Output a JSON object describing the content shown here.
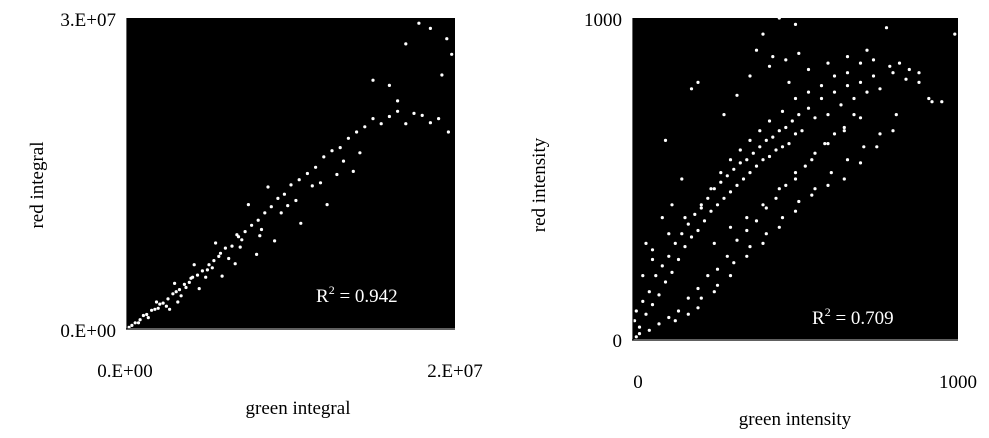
{
  "colors": {
    "plot_background": "#000000",
    "point": "#ffffff",
    "axis": "#000000",
    "text": "#000000"
  },
  "chart_data": [
    {
      "type": "scatter",
      "xlabel": "green integral",
      "ylabel": "red integral",
      "xlim": [
        0,
        20000000
      ],
      "ylim": [
        0,
        30000000
      ],
      "x_tick_labels": [
        "0.E+00",
        "2.E+07"
      ],
      "y_tick_labels": [
        "0.E+00",
        "3.E+07"
      ],
      "annotation": {
        "text": "R",
        "superscript": "2",
        "suffix": " = 0.942"
      },
      "grid": false,
      "points": [
        [
          120000.0,
          150000.0
        ],
        [
          300000.0,
          350000.0
        ],
        [
          500000.0,
          600000.0
        ],
        [
          800000.0,
          900000.0
        ],
        [
          1000000.0,
          1300000.0
        ],
        [
          1200000.0,
          1400000.0
        ],
        [
          1500000.0,
          1800000.0
        ],
        [
          1700000.0,
          1900000.0
        ],
        [
          2000000.0,
          2400000.0
        ],
        [
          2200000.0,
          2500000.0
        ],
        [
          2500000.0,
          2900000.0
        ],
        [
          2800000.0,
          3400000.0
        ],
        [
          3000000.0,
          3600000.0
        ],
        [
          3200000.0,
          3800000.0
        ],
        [
          3500000.0,
          4300000.0
        ],
        [
          3800000.0,
          4500000.0
        ],
        [
          4000000.0,
          5000000.0
        ],
        [
          4300000.0,
          5200000.0
        ],
        [
          4600000.0,
          5600000.0
        ],
        [
          5000000.0,
          6200000.0
        ],
        [
          5300000.0,
          6600000.0
        ],
        [
          5600000.0,
          7000000.0
        ],
        [
          6000000.0,
          7800000.0
        ],
        [
          6400000.0,
          8000000.0
        ],
        [
          6800000.0,
          8900000.0
        ],
        [
          7200000.0,
          9400000.0
        ],
        [
          7600000.0,
          10000000.0
        ],
        [
          8000000.0,
          10500000.0
        ],
        [
          8400000.0,
          11200000.0
        ],
        [
          8800000.0,
          11800000.0
        ],
        [
          9200000.0,
          12600000.0
        ],
        [
          9600000.0,
          13000000.0
        ],
        [
          10000000.0,
          13900000.0
        ],
        [
          10500000.0,
          14400000.0
        ],
        [
          11000000.0,
          15000000.0
        ],
        [
          11500000.0,
          15600000.0
        ],
        [
          12000000.0,
          16600000.0
        ],
        [
          12500000.0,
          17200000.0
        ],
        [
          13000000.0,
          17500000.0
        ],
        [
          13500000.0,
          18400000.0
        ],
        [
          14000000.0,
          19000000.0
        ],
        [
          14500000.0,
          19500000.0
        ],
        [
          15000000.0,
          20300000.0
        ],
        [
          15500000.0,
          19800000.0
        ],
        [
          16000000.0,
          20500000.0
        ],
        [
          16500000.0,
          21000000.0
        ],
        [
          17000000.0,
          19800000.0
        ],
        [
          17500000.0,
          20800000.0
        ],
        [
          18000000.0,
          20600000.0
        ],
        [
          18500000.0,
          19900000.0
        ],
        [
          19000000.0,
          20300000.0
        ],
        [
          19600000.0,
          19000000.0
        ],
        [
          15000000.0,
          24000000.0
        ],
        [
          16000000.0,
          23500000.0
        ],
        [
          17000000.0,
          27500000.0
        ],
        [
          17800000.0,
          29500000.0
        ],
        [
          18500000.0,
          29000000.0
        ],
        [
          19500000.0,
          28000000.0
        ],
        [
          19800000.0,
          26500000.0
        ],
        [
          19200000.0,
          24500000.0
        ],
        [
          13800000.0,
          15200000.0
        ],
        [
          16500000.0,
          22000000.0
        ],
        [
          2600000.0,
          1900000.0
        ],
        [
          3100000.0,
          2600000.0
        ],
        [
          4400000.0,
          3900000.0
        ],
        [
          5800000.0,
          5100000.0
        ],
        [
          6600000.0,
          6300000.0
        ],
        [
          7900000.0,
          7200000.0
        ],
        [
          9000000.0,
          8500000.0
        ],
        [
          10600000.0,
          10200000.0
        ],
        [
          12200000.0,
          12000000.0
        ],
        [
          1800000.0,
          2600000.0
        ],
        [
          2900000.0,
          4400000.0
        ],
        [
          4100000.0,
          6200000.0
        ],
        [
          5400000.0,
          8300000.0
        ],
        [
          6700000.0,
          9100000.0
        ],
        [
          7400000.0,
          12000000.0
        ],
        [
          8600000.0,
          13700000.0
        ],
        [
          9400000.0,
          11200000.0
        ],
        [
          11300000.0,
          13800000.0
        ],
        [
          12800000.0,
          14900000.0
        ],
        [
          3600000.0,
          4000000.0
        ],
        [
          4800000.0,
          5000000.0
        ],
        [
          5200000.0,
          5900000.0
        ],
        [
          6200000.0,
          6800000.0
        ],
        [
          7000000.0,
          8600000.0
        ],
        [
          8200000.0,
          9600000.0
        ],
        [
          9800000.0,
          11900000.0
        ],
        [
          10300000.0,
          12400000.0
        ],
        [
          11800000.0,
          14100000.0
        ],
        [
          13200000.0,
          16200000.0
        ],
        [
          14200000.0,
          17000000.0
        ],
        [
          700000.0,
          600000.0
        ],
        [
          1300000.0,
          1100000.0
        ],
        [
          1900000.0,
          2000000.0
        ],
        [
          2400000.0,
          2200000.0
        ],
        [
          3300000.0,
          3200000.0
        ],
        [
          3900000.0,
          4900000.0
        ],
        [
          4900000.0,
          5700000.0
        ],
        [
          5700000.0,
          7300000.0
        ],
        [
          6900000.0,
          7900000.0
        ],
        [
          8100000.0,
          9000000.0
        ]
      ]
    },
    {
      "type": "scatter",
      "xlabel": "green intensity",
      "ylabel": "red intensity",
      "xlim": [
        0,
        1000
      ],
      "ylim": [
        0,
        1000
      ],
      "x_tick_labels": [
        "0",
        "1000"
      ],
      "y_tick_labels": [
        "0",
        "1000"
      ],
      "annotation": {
        "text": "R",
        "superscript": "2",
        "suffix": " = 0.709"
      },
      "grid": false,
      "points": [
        [
          5,
          60
        ],
        [
          10,
          90
        ],
        [
          20,
          40
        ],
        [
          30,
          120
        ],
        [
          40,
          80
        ],
        [
          50,
          150
        ],
        [
          60,
          110
        ],
        [
          70,
          200
        ],
        [
          80,
          140
        ],
        [
          90,
          230
        ],
        [
          100,
          180
        ],
        [
          110,
          260
        ],
        [
          120,
          210
        ],
        [
          130,
          300
        ],
        [
          140,
          250
        ],
        [
          150,
          330
        ],
        [
          160,
          290
        ],
        [
          170,
          360
        ],
        [
          180,
          320
        ],
        [
          190,
          390
        ],
        [
          200,
          340
        ],
        [
          210,
          420
        ],
        [
          220,
          370
        ],
        [
          230,
          440
        ],
        [
          240,
          400
        ],
        [
          250,
          470
        ],
        [
          260,
          420
        ],
        [
          270,
          490
        ],
        [
          280,
          440
        ],
        [
          290,
          510
        ],
        [
          300,
          460
        ],
        [
          310,
          530
        ],
        [
          320,
          480
        ],
        [
          330,
          550
        ],
        [
          340,
          500
        ],
        [
          350,
          560
        ],
        [
          360,
          520
        ],
        [
          370,
          580
        ],
        [
          380,
          540
        ],
        [
          390,
          600
        ],
        [
          400,
          560
        ],
        [
          410,
          620
        ],
        [
          420,
          570
        ],
        [
          430,
          630
        ],
        [
          440,
          590
        ],
        [
          450,
          650
        ],
        [
          460,
          600
        ],
        [
          470,
          660
        ],
        [
          480,
          610
        ],
        [
          490,
          680
        ],
        [
          500,
          640
        ],
        [
          510,
          700
        ],
        [
          520,
          650
        ],
        [
          540,
          720
        ],
        [
          560,
          690
        ],
        [
          580,
          750
        ],
        [
          600,
          700
        ],
        [
          620,
          770
        ],
        [
          640,
          730
        ],
        [
          660,
          790
        ],
        [
          680,
          750
        ],
        [
          700,
          800
        ],
        [
          720,
          770
        ],
        [
          740,
          820
        ],
        [
          760,
          780
        ],
        [
          800,
          830
        ],
        [
          840,
          810
        ],
        [
          880,
          800
        ],
        [
          920,
          740
        ],
        [
          950,
          740
        ],
        [
          990,
          950
        ],
        [
          450,
          1000
        ],
        [
          500,
          980
        ],
        [
          400,
          950
        ],
        [
          430,
          880
        ],
        [
          380,
          900
        ],
        [
          200,
          800
        ],
        [
          180,
          780
        ],
        [
          100,
          620
        ],
        [
          150,
          500
        ],
        [
          60,
          280
        ],
        [
          40,
          300
        ],
        [
          90,
          380
        ],
        [
          120,
          420
        ],
        [
          250,
          300
        ],
        [
          300,
          350
        ],
        [
          350,
          380
        ],
        [
          400,
          420
        ],
        [
          450,
          470
        ],
        [
          500,
          500
        ],
        [
          550,
          560
        ],
        [
          600,
          610
        ],
        [
          650,
          650
        ],
        [
          700,
          690
        ],
        [
          280,
          700
        ],
        [
          320,
          760
        ],
        [
          360,
          820
        ],
        [
          420,
          850
        ],
        [
          480,
          800
        ],
        [
          540,
          840
        ],
        [
          600,
          860
        ],
        [
          660,
          880
        ],
        [
          720,
          900
        ],
        [
          780,
          970
        ],
        [
          470,
          870
        ],
        [
          510,
          890
        ],
        [
          10,
          10
        ],
        [
          20,
          20
        ],
        [
          50,
          30
        ],
        [
          80,
          50
        ],
        [
          110,
          70
        ],
        [
          140,
          90
        ],
        [
          170,
          130
        ],
        [
          200,
          160
        ],
        [
          230,
          200
        ],
        [
          260,
          220
        ],
        [
          290,
          260
        ],
        [
          320,
          310
        ],
        [
          350,
          340
        ],
        [
          380,
          370
        ],
        [
          410,
          410
        ],
        [
          440,
          440
        ],
        [
          470,
          480
        ],
        [
          500,
          520
        ],
        [
          530,
          540
        ],
        [
          560,
          580
        ],
        [
          590,
          610
        ],
        [
          620,
          640
        ],
        [
          650,
          660
        ],
        [
          680,
          700
        ],
        [
          30,
          200
        ],
        [
          60,
          250
        ],
        [
          110,
          330
        ],
        [
          160,
          380
        ],
        [
          210,
          410
        ],
        [
          240,
          470
        ],
        [
          270,
          520
        ],
        [
          300,
          560
        ],
        [
          330,
          590
        ],
        [
          360,
          620
        ],
        [
          390,
          650
        ],
        [
          420,
          680
        ],
        [
          460,
          710
        ],
        [
          500,
          750
        ],
        [
          540,
          770
        ],
        [
          580,
          790
        ],
        [
          620,
          820
        ],
        [
          660,
          830
        ],
        [
          700,
          860
        ],
        [
          740,
          870
        ],
        [
          790,
          850
        ],
        [
          820,
          860
        ],
        [
          850,
          840
        ],
        [
          880,
          830
        ],
        [
          910,
          750
        ],
        [
          200,
          100
        ],
        [
          250,
          150
        ],
        [
          300,
          200
        ],
        [
          350,
          260
        ],
        [
          400,
          300
        ],
        [
          450,
          350
        ],
        [
          500,
          400
        ],
        [
          550,
          450
        ],
        [
          600,
          480
        ],
        [
          650,
          500
        ],
        [
          700,
          550
        ],
        [
          750,
          600
        ],
        [
          800,
          650
        ],
        [
          130,
          60
        ],
        [
          170,
          80
        ],
        [
          210,
          130
        ],
        [
          260,
          170
        ],
        [
          310,
          240
        ],
        [
          360,
          290
        ],
        [
          410,
          330
        ],
        [
          460,
          380
        ],
        [
          510,
          430
        ],
        [
          560,
          470
        ],
        [
          610,
          520
        ],
        [
          660,
          560
        ],
        [
          710,
          600
        ],
        [
          760,
          640
        ],
        [
          810,
          700
        ]
      ]
    }
  ]
}
